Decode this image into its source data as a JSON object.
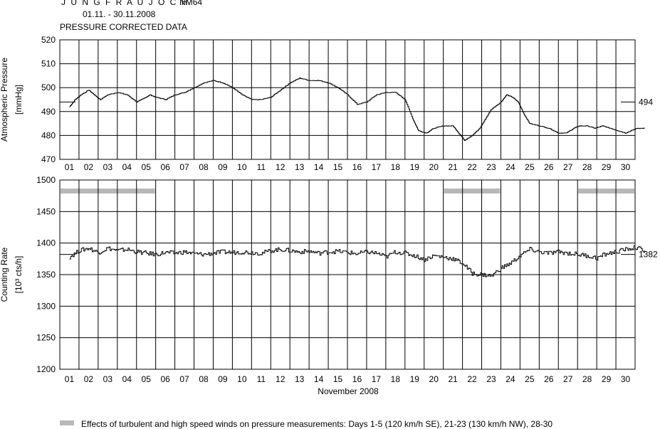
{
  "header": {
    "station": "J U N G F R A U J O C H",
    "monitor": "NM64",
    "period": "01.11. - 30.11.2008",
    "subtitle": "PRESSURE CORRECTED DATA"
  },
  "footer": {
    "month_label": "November 2008",
    "legend_text": "Effects of turbulent and high speed winds on pressure measurements: Days 1-5 (120 km/h SE), 21-23 (130 km/h NW), 28-30",
    "legend_color": "#b8b8b8"
  },
  "chart_data": [
    {
      "type": "line",
      "ylabel_line1": "Atmospheric Pressure",
      "ylabel_line2": "[mmHg]",
      "ylim": [
        470,
        520
      ],
      "yticks": [
        "470",
        "480",
        "490",
        "500",
        "510",
        "520"
      ],
      "xticks": [
        "01",
        "02",
        "03",
        "04",
        "05",
        "06",
        "07",
        "08",
        "09",
        "10",
        "11",
        "12",
        "13",
        "14",
        "15",
        "16",
        "17",
        "18",
        "19",
        "20",
        "21",
        "22",
        "23",
        "24",
        "25",
        "26",
        "27",
        "28",
        "29",
        "30"
      ],
      "grid": true,
      "reference_value": "494",
      "x": [
        0,
        0.3,
        0.6,
        1.0,
        1.3,
        1.6,
        2.0,
        2.5,
        3.0,
        3.5,
        4.0,
        4.2,
        4.5,
        5.0,
        5.5,
        6.0,
        6.5,
        7.0,
        7.5,
        8.0,
        8.5,
        9.0,
        9.5,
        10.0,
        10.5,
        11.0,
        11.5,
        12.0,
        12.5,
        13.0,
        13.5,
        14.0,
        14.5,
        15.0,
        15.5,
        16.0,
        16.5,
        17.0,
        17.5,
        17.9,
        18.2,
        18.6,
        19.0,
        19.5,
        20.0,
        20.3,
        20.6,
        21.0,
        21.4,
        21.7,
        22.0,
        22.5,
        22.8,
        23.1,
        23.4,
        23.7,
        24.0,
        24.5,
        25.0,
        25.5,
        25.9,
        26.3,
        26.6,
        27.0,
        27.4,
        27.8,
        28.2,
        28.6,
        29.0,
        29.3,
        29.6,
        30.0
      ],
      "y": [
        492,
        495,
        497,
        499,
        497,
        495,
        497,
        498,
        497,
        494,
        496,
        497,
        496,
        495,
        497,
        498,
        500,
        502,
        503,
        502,
        500,
        497,
        495,
        495,
        496,
        499,
        502,
        504,
        503,
        503,
        502,
        500,
        497,
        493,
        494,
        497,
        498,
        498,
        495,
        487,
        482,
        481,
        483,
        484,
        484,
        481,
        478,
        480,
        483,
        487,
        491,
        494,
        497,
        496,
        494,
        489,
        485,
        484,
        483,
        481,
        481,
        483,
        484,
        484,
        483,
        484,
        483,
        482,
        481,
        482,
        483,
        483
      ]
    },
    {
      "type": "line",
      "ylabel_line1": "Counting Rate",
      "ylabel_line2": "[10³ cts/h]",
      "ylim": [
        1200,
        1500
      ],
      "yticks": [
        "1200",
        "1250",
        "1300",
        "1350",
        "1400",
        "1450",
        "1500"
      ],
      "xticks": [
        "01",
        "02",
        "03",
        "04",
        "05",
        "06",
        "07",
        "08",
        "09",
        "10",
        "11",
        "12",
        "13",
        "14",
        "15",
        "16",
        "17",
        "18",
        "19",
        "20",
        "21",
        "22",
        "23",
        "24",
        "25",
        "26",
        "27",
        "28",
        "29",
        "30"
      ],
      "grid": true,
      "reference_value": "1382",
      "wind_bands": [
        {
          "from_day": 1,
          "to_day": 5
        },
        {
          "from_day": 21,
          "to_day": 23
        },
        {
          "from_day": 28,
          "to_day": 30
        }
      ],
      "x": [
        0,
        0.5,
        1.0,
        1.5,
        2.0,
        2.5,
        3.0,
        3.5,
        4.0,
        4.5,
        5.0,
        5.5,
        6.0,
        6.5,
        7.0,
        7.5,
        8.0,
        8.5,
        9.0,
        9.5,
        10.0,
        10.5,
        11.0,
        11.5,
        12.0,
        12.5,
        13.0,
        13.5,
        14.0,
        14.5,
        15.0,
        15.5,
        16.0,
        16.5,
        17.0,
        17.5,
        18.0,
        18.5,
        19.0,
        19.5,
        20.0,
        20.5,
        21.0,
        21.5,
        22.0,
        22.5,
        23.0,
        23.5,
        24.0,
        24.5,
        25.0,
        25.5,
        26.0,
        26.5,
        27.0,
        27.5,
        28.0,
        28.5,
        29.0,
        29.5,
        30.0
      ],
      "y": [
        1378,
        1388,
        1392,
        1385,
        1392,
        1388,
        1390,
        1386,
        1384,
        1382,
        1385,
        1384,
        1386,
        1383,
        1382,
        1384,
        1386,
        1385,
        1386,
        1385,
        1384,
        1388,
        1390,
        1388,
        1386,
        1387,
        1384,
        1386,
        1387,
        1385,
        1383,
        1386,
        1384,
        1378,
        1386,
        1384,
        1380,
        1374,
        1380,
        1378,
        1375,
        1368,
        1352,
        1350,
        1348,
        1360,
        1368,
        1380,
        1390,
        1386,
        1384,
        1386,
        1384,
        1382,
        1380,
        1376,
        1383,
        1386,
        1390,
        1393,
        1388
      ]
    }
  ]
}
